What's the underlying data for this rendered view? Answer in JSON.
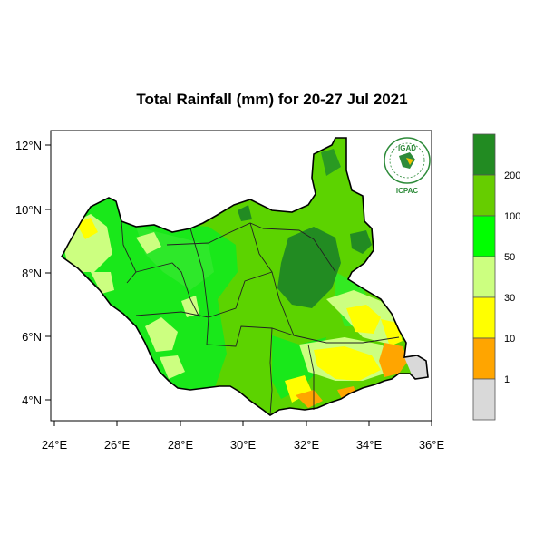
{
  "title": "Total Rainfall (mm) for 20-27 Jul 2021",
  "axes": {
    "x_ticks": [
      "24°E",
      "26°E",
      "28°E",
      "30°E",
      "32°E",
      "34°E",
      "36°E"
    ],
    "y_ticks": [
      "12°N",
      "10°N",
      "8°N",
      "6°N",
      "4°N"
    ]
  },
  "logo": {
    "top": "IGAD",
    "bottom": "ICPAC"
  },
  "legend": {
    "labels": [
      "200",
      "100",
      "50",
      "30",
      "10",
      "1"
    ],
    "colors": [
      "#228b22",
      "#66cd00",
      "#00ff00",
      "#ccff80",
      "#ffff00",
      "#ffa500",
      "#d9d9d9"
    ],
    "classes": [
      "200+",
      "100-200",
      "50-100",
      "30-50",
      "10-30",
      "1-10",
      "0-1"
    ]
  }
}
